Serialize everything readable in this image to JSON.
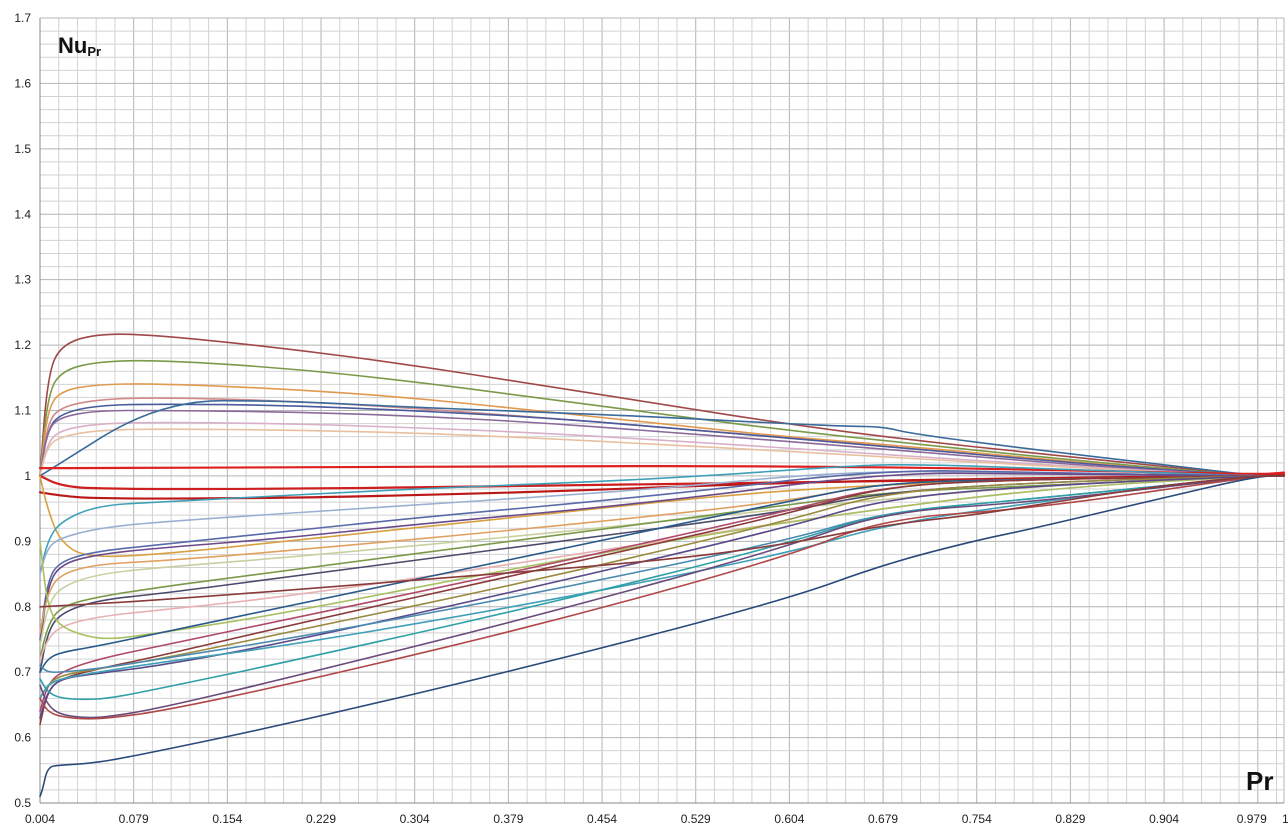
{
  "chart_data": {
    "type": "line",
    "title": "",
    "ylabel_main": "Nu",
    "ylabel_sub": "Pr",
    "xlabel": "Pr",
    "xlim": [
      0.004,
      1
    ],
    "ylim": [
      0.5,
      1.7
    ],
    "x_tick_labels": [
      "0.004",
      "0.079",
      "0.154",
      "0.229",
      "0.304",
      "0.379",
      "0.454",
      "0.529",
      "0.604",
      "0.679",
      "0.754",
      "0.829",
      "0.904",
      "0.979",
      "1"
    ],
    "y_tick_labels": [
      "0.5",
      "0.6",
      "0.7",
      "0.8",
      "0.9",
      "1",
      "1.1",
      "1.2",
      "1.3",
      "1.4",
      "1.5",
      "1.6",
      "1.7"
    ],
    "grid": true,
    "legend": "none",
    "series": [
      {
        "color": "#a04848",
        "x": [
          0.004,
          0.01,
          0.02,
          0.05,
          0.1,
          0.2,
          0.3,
          0.4,
          0.5,
          0.6,
          0.7,
          0.8,
          0.9,
          0.979,
          1
        ],
        "y": [
          1.0,
          1.15,
          1.2,
          1.218,
          1.215,
          1.195,
          1.17,
          1.14,
          1.11,
          1.08,
          1.055,
          1.035,
          1.015,
          1.0,
          1.0
        ]
      },
      {
        "color": "#7a9a4a",
        "x": [
          0.004,
          0.01,
          0.02,
          0.05,
          0.1,
          0.2,
          0.3,
          0.4,
          0.5,
          0.6,
          0.7,
          0.8,
          0.9,
          0.979,
          1
        ],
        "y": [
          1.0,
          1.12,
          1.16,
          1.175,
          1.177,
          1.165,
          1.145,
          1.12,
          1.095,
          1.07,
          1.05,
          1.03,
          1.012,
          1.0,
          1.0
        ]
      },
      {
        "color": "#e09a50",
        "x": [
          0.004,
          0.01,
          0.02,
          0.05,
          0.1,
          0.2,
          0.3,
          0.4,
          0.5,
          0.6,
          0.7,
          0.8,
          0.9,
          0.979,
          1
        ],
        "y": [
          1.0,
          1.1,
          1.13,
          1.14,
          1.141,
          1.133,
          1.12,
          1.1,
          1.08,
          1.06,
          1.045,
          1.027,
          1.01,
          1.0,
          1.0
        ]
      },
      {
        "color": "#d08a8a",
        "x": [
          0.004,
          0.01,
          0.02,
          0.05,
          0.1,
          0.2,
          0.3,
          0.4,
          0.5,
          0.6,
          0.7,
          0.8,
          0.9,
          0.979,
          1
        ],
        "y": [
          1.0,
          1.08,
          1.105,
          1.117,
          1.12,
          1.115,
          1.104,
          1.09,
          1.075,
          1.058,
          1.042,
          1.025,
          1.01,
          1.0,
          1.0
        ]
      },
      {
        "color": "#4a5a9a",
        "x": [
          0.004,
          0.01,
          0.02,
          0.05,
          0.1,
          0.2,
          0.3,
          0.4,
          0.5,
          0.6,
          0.7,
          0.8,
          0.9,
          0.979,
          1
        ],
        "y": [
          1.0,
          1.07,
          1.095,
          1.108,
          1.11,
          1.108,
          1.1,
          1.09,
          1.075,
          1.058,
          1.042,
          1.025,
          1.01,
          1.0,
          1.0
        ]
      },
      {
        "color": "#8a6a9a",
        "x": [
          0.004,
          0.01,
          0.02,
          0.05,
          0.1,
          0.2,
          0.3,
          0.4,
          0.5,
          0.6,
          0.7,
          0.8,
          0.9,
          0.979,
          1
        ],
        "y": [
          1.0,
          1.07,
          1.09,
          1.1,
          1.1,
          1.098,
          1.092,
          1.082,
          1.068,
          1.053,
          1.038,
          1.022,
          1.008,
          1.0,
          1.0
        ]
      },
      {
        "color": "#d8b0c8",
        "x": [
          0.004,
          0.01,
          0.02,
          0.05,
          0.1,
          0.2,
          0.3,
          0.4,
          0.5,
          0.6,
          0.7,
          0.8,
          0.9,
          0.979,
          1
        ],
        "y": [
          1.0,
          1.05,
          1.07,
          1.08,
          1.082,
          1.08,
          1.074,
          1.066,
          1.055,
          1.043,
          1.03,
          1.018,
          1.007,
          1.0,
          1.0
        ]
      },
      {
        "color": "#e8c0a0",
        "x": [
          0.004,
          0.01,
          0.02,
          0.05,
          0.1,
          0.2,
          0.3,
          0.4,
          0.5,
          0.6,
          0.7,
          0.8,
          0.9,
          0.979,
          1
        ],
        "y": [
          1.0,
          1.045,
          1.06,
          1.07,
          1.072,
          1.07,
          1.066,
          1.058,
          1.048,
          1.038,
          1.027,
          1.016,
          1.006,
          1.0,
          1.0
        ]
      },
      {
        "color": "#3a6a9a",
        "x": [
          0.004,
          0.1,
          0.2,
          0.3,
          0.4,
          0.5,
          0.6,
          0.65,
          0.68,
          0.7,
          0.8,
          0.9,
          0.979,
          1
        ],
        "y": [
          1.0,
          1.115,
          1.115,
          1.105,
          1.098,
          1.09,
          1.08,
          1.076,
          1.075,
          1.065,
          1.04,
          1.018,
          1.0,
          1.0
        ]
      },
      {
        "color": "#dd2020",
        "x": [
          0.004,
          0.05,
          0.2,
          0.4,
          0.6,
          0.8,
          0.979,
          1
        ],
        "y": [
          1.012,
          1.012,
          1.013,
          1.015,
          1.015,
          1.01,
          1.002,
          1.005
        ]
      },
      {
        "color": "#cc2020",
        "x": [
          0.004,
          0.02,
          0.05,
          0.2,
          0.4,
          0.6,
          0.8,
          0.979,
          1
        ],
        "y": [
          1.0,
          0.985,
          0.98,
          0.98,
          0.985,
          0.99,
          0.995,
          1.0,
          1.002
        ]
      },
      {
        "color": "#bb1818",
        "x": [
          0.004,
          0.02,
          0.05,
          0.2,
          0.4,
          0.6,
          0.8,
          0.979,
          1
        ],
        "y": [
          0.975,
          0.97,
          0.965,
          0.966,
          0.975,
          0.99,
          0.997,
          1.0,
          1.0
        ]
      },
      {
        "color": "#d8a040",
        "x": [
          0.004,
          0.01,
          0.02,
          0.04,
          0.1,
          0.2,
          0.4,
          0.6,
          0.8,
          0.979,
          1
        ],
        "y": [
          1.0,
          0.95,
          0.9,
          0.875,
          0.88,
          0.9,
          0.94,
          0.98,
          0.995,
          1.0,
          1.0
        ]
      },
      {
        "color": "#40a0b8",
        "x": [
          0.004,
          0.01,
          0.02,
          0.05,
          0.1,
          0.3,
          0.5,
          0.65,
          0.7,
          0.8,
          0.9,
          0.979,
          1
        ],
        "y": [
          0.85,
          0.9,
          0.93,
          0.955,
          0.96,
          0.98,
          0.995,
          1.015,
          1.018,
          1.012,
          1.005,
          1.0,
          1.0
        ]
      },
      {
        "color": "#9ab0d0",
        "x": [
          0.004,
          0.01,
          0.02,
          0.05,
          0.1,
          0.3,
          0.5,
          0.65,
          0.8,
          0.979,
          1
        ],
        "y": [
          0.85,
          0.89,
          0.905,
          0.92,
          0.93,
          0.955,
          0.98,
          1.008,
          1.005,
          1.0,
          1.0
        ]
      },
      {
        "color": "#5a6aa8",
        "x": [
          0.004,
          0.01,
          0.02,
          0.05,
          0.1,
          0.2,
          0.3,
          0.5,
          0.68,
          0.8,
          0.979,
          1
        ],
        "y": [
          0.75,
          0.84,
          0.87,
          0.885,
          0.895,
          0.915,
          0.935,
          0.97,
          1.01,
          1.005,
          1.0,
          1.0
        ]
      },
      {
        "color": "#6a4a8a",
        "x": [
          0.004,
          0.01,
          0.02,
          0.05,
          0.1,
          0.2,
          0.3,
          0.5,
          0.68,
          0.8,
          0.979,
          1
        ],
        "y": [
          0.74,
          0.83,
          0.865,
          0.88,
          0.89,
          0.905,
          0.925,
          0.96,
          1.005,
          1.003,
          1.0,
          1.0
        ]
      },
      {
        "color": "#e0a060",
        "x": [
          0.004,
          0.01,
          0.02,
          0.05,
          0.1,
          0.2,
          0.4,
          0.6,
          0.68,
          0.8,
          0.979,
          1
        ],
        "y": [
          0.76,
          0.82,
          0.85,
          0.865,
          0.87,
          0.885,
          0.92,
          0.96,
          0.99,
          0.995,
          1.0,
          1.0
        ]
      },
      {
        "color": "#c8d0a0",
        "x": [
          0.004,
          0.01,
          0.02,
          0.05,
          0.1,
          0.2,
          0.4,
          0.6,
          0.8,
          0.979,
          1
        ],
        "y": [
          0.74,
          0.8,
          0.83,
          0.85,
          0.86,
          0.875,
          0.91,
          0.95,
          0.985,
          1.0,
          1.0
        ]
      },
      {
        "color": "#7a9a4a",
        "x": [
          0.004,
          0.01,
          0.02,
          0.05,
          0.1,
          0.2,
          0.4,
          0.6,
          0.68,
          0.8,
          0.979,
          1
        ],
        "y": [
          0.72,
          0.77,
          0.8,
          0.815,
          0.83,
          0.855,
          0.905,
          0.955,
          0.975,
          0.985,
          1.0,
          1.0
        ]
      },
      {
        "color": "#4a4a6a",
        "x": [
          0.004,
          0.01,
          0.02,
          0.05,
          0.1,
          0.2,
          0.4,
          0.6,
          0.68,
          0.8,
          0.979,
          1
        ],
        "y": [
          0.7,
          0.76,
          0.79,
          0.81,
          0.82,
          0.845,
          0.895,
          0.945,
          0.975,
          0.99,
          1.0,
          1.0
        ]
      },
      {
        "color": "#e8b0b0",
        "x": [
          0.004,
          0.01,
          0.02,
          0.05,
          0.1,
          0.2,
          0.4,
          0.6,
          0.8,
          0.979,
          1
        ],
        "y": [
          0.72,
          0.75,
          0.77,
          0.785,
          0.795,
          0.815,
          0.87,
          0.93,
          0.98,
          1.0,
          1.0
        ]
      },
      {
        "color": "#a8c060",
        "x": [
          0.004,
          0.01,
          0.02,
          0.04,
          0.06,
          0.1,
          0.2,
          0.4,
          0.6,
          0.8,
          0.979,
          1
        ],
        "y": [
          0.9,
          0.8,
          0.77,
          0.755,
          0.75,
          0.76,
          0.79,
          0.865,
          0.93,
          0.98,
          1.0,
          1.0
        ]
      },
      {
        "color": "#2a5a8a",
        "x": [
          0.004,
          0.01,
          0.02,
          0.05,
          0.1,
          0.2,
          0.4,
          0.6,
          0.68,
          0.8,
          0.979,
          1
        ],
        "y": [
          0.7,
          0.72,
          0.73,
          0.74,
          0.76,
          0.8,
          0.88,
          0.96,
          0.99,
          0.995,
          1.0,
          1.0
        ]
      },
      {
        "color": "#b04a6a",
        "x": [
          0.004,
          0.01,
          0.02,
          0.05,
          0.1,
          0.2,
          0.4,
          0.6,
          0.68,
          0.8,
          0.979,
          1
        ],
        "y": [
          0.64,
          0.68,
          0.7,
          0.72,
          0.74,
          0.78,
          0.86,
          0.945,
          0.985,
          0.995,
          1.0,
          1.0
        ]
      },
      {
        "color": "#8a3a3a",
        "x": [
          0.004,
          0.01,
          0.02,
          0.05,
          0.1,
          0.2,
          0.4,
          0.6,
          0.68,
          0.8,
          0.979,
          1
        ],
        "y": [
          0.62,
          0.67,
          0.69,
          0.705,
          0.725,
          0.77,
          0.855,
          0.94,
          0.985,
          0.995,
          1.0,
          1.0
        ]
      },
      {
        "color": "#9a8a40",
        "x": [
          0.004,
          0.01,
          0.02,
          0.05,
          0.1,
          0.2,
          0.4,
          0.6,
          0.68,
          0.8,
          0.979,
          1
        ],
        "y": [
          0.66,
          0.68,
          0.695,
          0.705,
          0.72,
          0.76,
          0.84,
          0.93,
          0.975,
          0.99,
          1.0,
          1.0
        ]
      },
      {
        "color": "#5a4a8a",
        "x": [
          0.004,
          0.01,
          0.02,
          0.05,
          0.1,
          0.2,
          0.4,
          0.6,
          0.68,
          0.8,
          0.979,
          1
        ],
        "y": [
          0.63,
          0.67,
          0.69,
          0.698,
          0.71,
          0.745,
          0.83,
          0.92,
          0.965,
          0.985,
          1.0,
          1.0
        ]
      },
      {
        "color": "#40a0b8",
        "x": [
          0.004,
          0.01,
          0.02,
          0.05,
          0.1,
          0.2,
          0.4,
          0.6,
          0.68,
          0.8,
          0.979,
          1
        ],
        "y": [
          0.66,
          0.68,
          0.69,
          0.7,
          0.715,
          0.74,
          0.805,
          0.88,
          0.925,
          0.96,
          1.0,
          1.0
        ]
      },
      {
        "color": "#4a8ab0",
        "x": [
          0.004,
          0.01,
          0.02,
          0.05,
          0.1,
          0.2,
          0.4,
          0.6,
          0.68,
          0.8,
          0.979,
          1
        ],
        "y": [
          0.71,
          0.7,
          0.7,
          0.705,
          0.72,
          0.75,
          0.82,
          0.9,
          0.945,
          0.965,
          1.0,
          1.0
        ]
      },
      {
        "color": "#30a0a8",
        "x": [
          0.004,
          0.01,
          0.02,
          0.04,
          0.06,
          0.1,
          0.2,
          0.4,
          0.6,
          0.68,
          0.8,
          0.979,
          1
        ],
        "y": [
          0.69,
          0.67,
          0.66,
          0.658,
          0.66,
          0.675,
          0.715,
          0.8,
          0.895,
          0.945,
          0.965,
          1.0,
          1.0
        ]
      },
      {
        "color": "#6a4a7a",
        "x": [
          0.004,
          0.01,
          0.02,
          0.04,
          0.06,
          0.1,
          0.2,
          0.4,
          0.6,
          0.68,
          0.8,
          0.979,
          1
        ],
        "y": [
          0.68,
          0.65,
          0.635,
          0.63,
          0.632,
          0.645,
          0.69,
          0.785,
          0.89,
          0.945,
          0.96,
          1.0,
          1.0
        ]
      },
      {
        "color": "#b04848",
        "x": [
          0.004,
          0.01,
          0.02,
          0.04,
          0.06,
          0.1,
          0.2,
          0.4,
          0.6,
          0.68,
          0.8,
          0.979,
          1
        ],
        "y": [
          0.66,
          0.64,
          0.632,
          0.628,
          0.63,
          0.64,
          0.68,
          0.77,
          0.875,
          0.935,
          0.95,
          1.0,
          1.0
        ]
      },
      {
        "color": "#2a4a7a",
        "x": [
          0.004,
          0.006,
          0.01,
          0.02,
          0.04,
          0.06,
          0.1,
          0.2,
          0.4,
          0.6,
          0.68,
          0.75,
          0.8,
          0.9,
          0.979,
          1
        ],
        "y": [
          0.51,
          0.52,
          0.555,
          0.558,
          0.56,
          0.565,
          0.58,
          0.62,
          0.71,
          0.81,
          0.865,
          0.9,
          0.92,
          0.965,
          1.0,
          1.0
        ]
      },
      {
        "color": "#8a3a3a",
        "x": [
          0.004,
          0.1,
          0.3,
          0.5,
          0.6,
          0.68,
          0.75,
          0.8,
          0.9,
          0.979,
          1
        ],
        "y": [
          0.8,
          0.81,
          0.84,
          0.87,
          0.895,
          0.925,
          0.94,
          0.955,
          0.985,
          1.0,
          1.0
        ]
      }
    ]
  }
}
